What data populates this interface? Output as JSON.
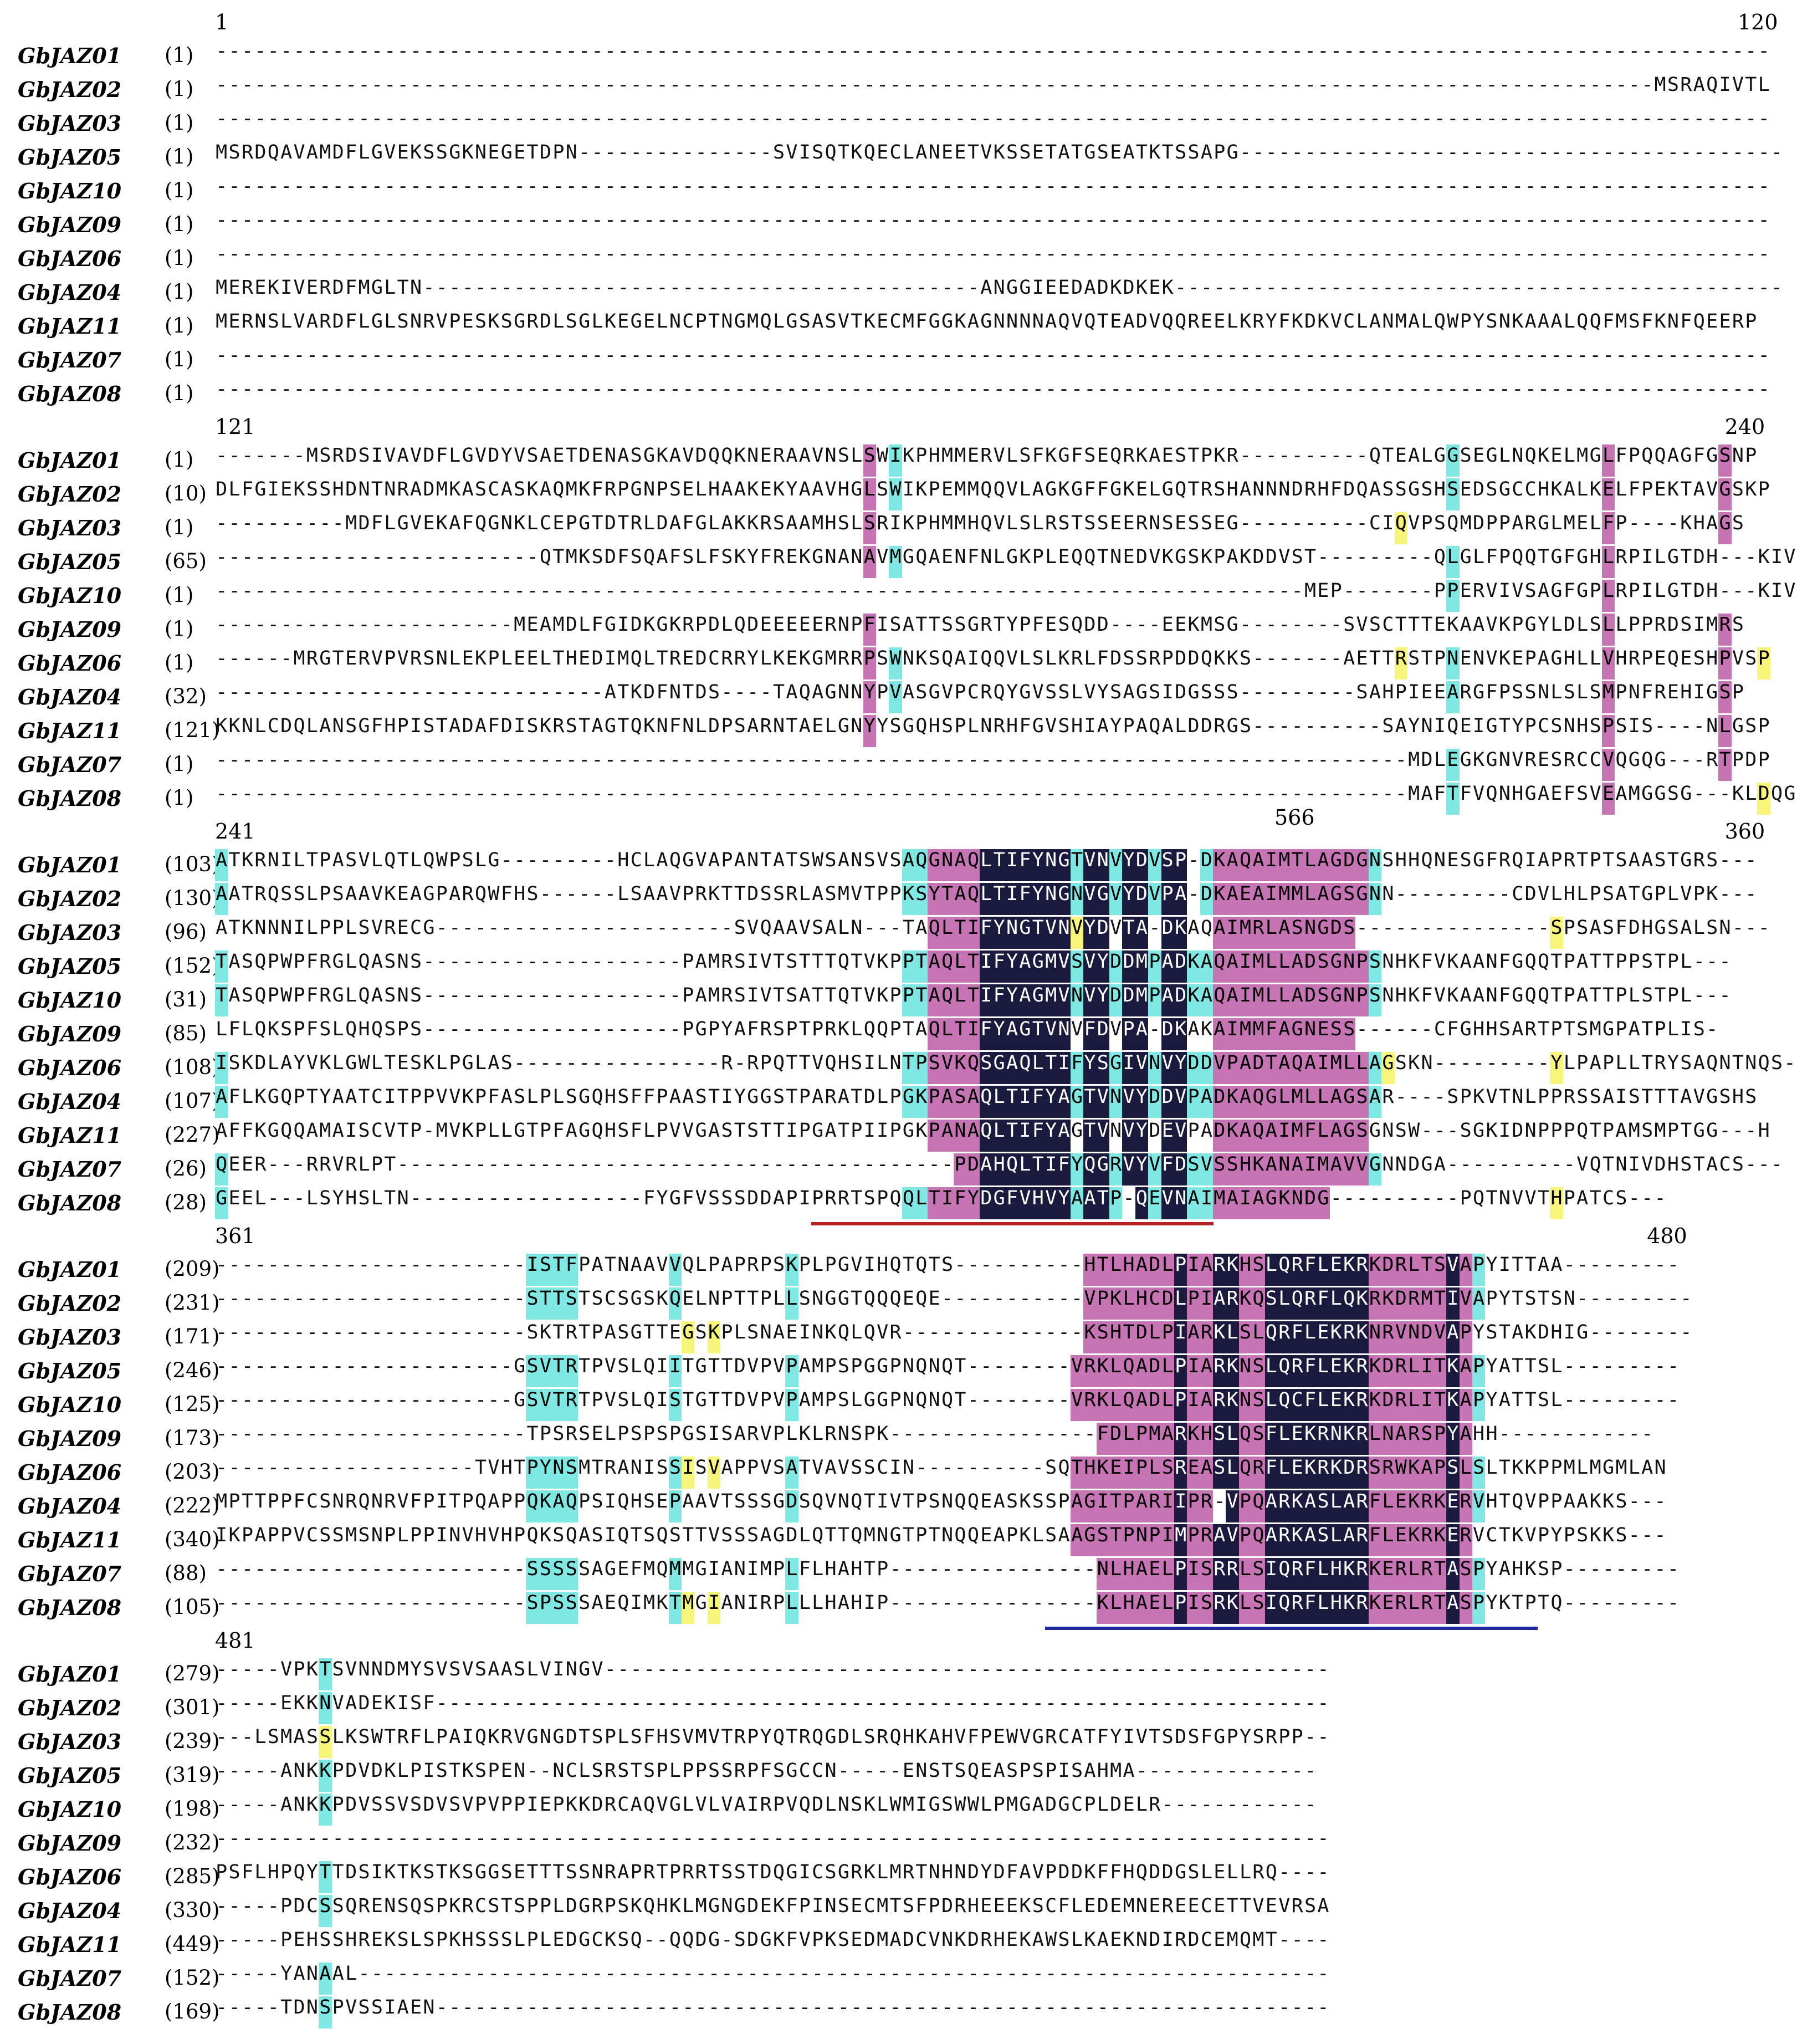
{
  "colors": {
    "identical": "#1a1a3e",
    "conserved": "#c774b4",
    "similar": "#7fe8e2",
    "weak": "#f7f57a",
    "tify_underline": "#b22222",
    "jas_underline": "#1e2a9a"
  },
  "blocks": [
    {
      "start": "1",
      "end": "120",
      "rows": [
        {
          "name": "GbJAZ01",
          "pos": "(1)",
          "seq": "------------------------------------------------------------------------------------------------------------------------"
        },
        {
          "name": "GbJAZ02",
          "pos": "(1)",
          "seq": "---------------------------------------------------------------------------------------------------------------MSRAQIVTL"
        },
        {
          "name": "GbJAZ03",
          "pos": "(1)",
          "seq": "------------------------------------------------------------------------------------------------------------------------"
        },
        {
          "name": "GbJAZ05",
          "pos": "(1)",
          "seq": "MSRDQAVAMDFLGVEKSSGKNEGETDPN---------------SVISQTKQECLANEETVKSSETATGSEATKTSSAPG------------------------------------------"
        },
        {
          "name": "GbJAZ10",
          "pos": "(1)",
          "seq": "------------------------------------------------------------------------------------------------------------------------"
        },
        {
          "name": "GbJAZ09",
          "pos": "(1)",
          "seq": "------------------------------------------------------------------------------------------------------------------------"
        },
        {
          "name": "GbJAZ06",
          "pos": "(1)",
          "seq": "------------------------------------------------------------------------------------------------------------------------"
        },
        {
          "name": "GbJAZ04",
          "pos": "(1)",
          "seq": "MEREKIVERDFMGLTN-------------------------------------------ANGGIEEDADKDKEK-----------------------------------------------"
        },
        {
          "name": "GbJAZ11",
          "pos": "(1)",
          "seq": "MERNSLVARDFLGLSNRVPESKSGRDLSGLKEGELNCPTNGMQLGSASVTKECMFGGKAGNNNNAQVQTEADVQQREELKRYFKDKVCLANMALQWPYSNKAAALQQFMSFKNFQEERP"
        },
        {
          "name": "GbJAZ07",
          "pos": "(1)",
          "seq": "------------------------------------------------------------------------------------------------------------------------"
        },
        {
          "name": "GbJAZ08",
          "pos": "(1)",
          "seq": "------------------------------------------------------------------------------------------------------------------------"
        }
      ]
    },
    {
      "start": "121",
      "end": "240",
      "rows": [
        {
          "name": "GbJAZ01",
          "pos": "(1)",
          "seq": "-------MSRDSIVAVDFLGVDYVSAETDENASGKAVDQQKNERAAVNSLSWIKPHMMERVLSFKGFSEQRKAESTPKR----------QTEALGGSEGLNQKELMGLFPQQAGFGSNP"
        },
        {
          "name": "GbJAZ02",
          "pos": "(10)",
          "seq": "DLFGIEKSSHDNTNRADMKASCASKAQMKFRPGNPSELHAAKEKYAAVHGLSWIKPEMMQQVLAGKGFFGKELGQTRSHANNNDRHFDQASSGSHSEDSGCCHKALKELFPEKTAVGSKP"
        },
        {
          "name": "GbJAZ03",
          "pos": "(1)",
          "seq": "----------MDFLGVEKAFQGNKLCEPGTDTRLDAFGLAKKRSAAMHSLSRIKPHMMHQVLSLRSTSSEERNSESSEG----------CIQVPSQMDPPARGLMELFP----KHAGS"
        },
        {
          "name": "GbJAZ05",
          "pos": "(65)",
          "seq": "-------------------------QTMKSDFSQAFSLFSKYFREKGNANAVMGQAENFNLGKPLEQQTNEDVKGSKPAKDDVST---------QLGLFPQQTGFGHLRPILGTDH---KIVAP"
        },
        {
          "name": "GbJAZ10",
          "pos": "(1)",
          "seq": "------------------------------------------------------------------------------------MEP-------PPERVIVSAGFGPLRPILGTDH---KIVAP"
        },
        {
          "name": "GbJAZ09",
          "pos": "(1)",
          "seq": "-----------------------MEAMDLFGIDKGKRPDLQDEEEEERNPFISATTSSGRTYPFESQDD----EEKMSG--------SVSCTTTEKAAVKPGYLDLSLLPPRDSIMRS"
        },
        {
          "name": "GbJAZ06",
          "pos": "(1)",
          "seq": "------MRGTERVPVRSNLEKPLEELTHEDIMQLTREDCRRYLKEKGMRRPSWNKSQAIQQVLSLKRLFDSSRPDDQKKS-------AETTRSTPNENVKEPAGHLLVHRPEQESHPVSP"
        },
        {
          "name": "GbJAZ04",
          "pos": "(32)",
          "seq": "------------------------------ATKDFNTDS----TAQAGNNYPVASGVPCRQYGVSSLVYSAGSIDGSSS---------SAHPIEEARGFPSSNLSLSMPNFREHIGSP"
        },
        {
          "name": "GbJAZ11",
          "pos": "(121)",
          "seq": "KKNLCDQLANSGFHPISTADAFDISKRSTAGTQKNFNLDPSARNTAELGNYYSGQHSPLNRHFGVSHIAYPAQALDDRGS----------SAYNIQEIGTYPCSNHSPSIS----NLGSP"
        },
        {
          "name": "GbJAZ07",
          "pos": "(1)",
          "seq": "--------------------------------------------------------------------------------------------MDLEGKGNVRESRCCVQGQG---RTPDP"
        },
        {
          "name": "GbJAZ08",
          "pos": "(1)",
          "seq": "--------------------------------------------------------------------------------------------MAFTFVQNHGAEFSVEAMGGSG---KLDQG"
        }
      ]
    },
    {
      "start": "241",
      "end": "360",
      "rows": [
        {
          "name": "GbJAZ01",
          "pos": "(103)",
          "seq": "ATKRNILTPASVLQTLQWPSLG---------HCLAQGVAPANTATSWSANSVSAQGNAQLTIFYNGTVNVYDVSP-DKAQAIMTLAGDGNSHHQNESGFRQIAPRTPTSAASTGRS---"
        },
        {
          "name": "GbJAZ02",
          "pos": "(130)",
          "seq": "AATRQSSLPSAAVKEAGPARQWFHS------LSAAVPRKTTDSSRLASMVTPPKSYTAQLTIFYNGNVGVYDVPA-DKAEAIMMLAGSGNN---------CDVLHLPSATGPLVPK---"
        },
        {
          "name": "GbJAZ03",
          "pos": "(96)",
          "seq": "ATKNNNILPPLSVRECG-----------------------SVQAAVSALN---TAQLTIFYNGTVNVYDVTA-DKAQAIMRLASNGDS---------------SPSASFDHGSALSN---"
        },
        {
          "name": "GbJAZ05",
          "pos": "(152)",
          "seq": "TASQPWPFRGLQASNS--------------------PAMRSIVTSTTTQTVKPPTAQLTIFYAGMVSVYDDMPADKAQAIMLLADSGNPSNHKFVKAANFGQQTPATTPPSTPL---"
        },
        {
          "name": "GbJAZ10",
          "pos": "(31)",
          "seq": "TASQPWPFRGLQASNS--------------------PAMRSIVTSATTQTVKPPTAQLTIFYAGMVNVYDDMPADKAQAIMLLADSGNPSNHKFVKAANFGQQTPATTPLSTPL---"
        },
        {
          "name": "GbJAZ09",
          "pos": "(85)",
          "seq": "LFLQKSPFSLQHQSPS--------------------PGPYAFRSPTPRKLQQPTAQLTIFYAGTVNVFDVPA-DKAKAIMMFAGNESS------CFGHHSARTPTSMGPATPLIS-"
        },
        {
          "name": "GbJAZ06",
          "pos": "(108)",
          "seq": "ISKDLAYVKLGWLTESKLPGLAS----------------R-RPQTTVQHSILNTPSVKQSGAQLTIFYSGIVNVYDDVPADTAQAIMLLAGSKN---------YLPAPLLTRYSAQNTNQS---"
        },
        {
          "name": "GbJAZ04",
          "pos": "(107)",
          "seq": "AFLKGQPTYAATCITPPVVKPFASLPLSGQHSFFPAASTIYGGSTPARATDLPGKPASAQLTIFYAGTVNVYDDVPADKAQGLMLLAGSAR----SPKVTNLPPRSSAISTTTAVGSHS"
        },
        {
          "name": "GbJAZ11",
          "pos": "(227)",
          "seq": "AFFKGQQAMAISCVTP-MVKPLLGTPFAGQHSFLPVVGASTSTTIPGATPIIPGKPANAQLTIFYAGTVNVYDEVPADKAQAIMFLAGSGNSW---SGKIDNPPPQTPAMSMPTGG---H"
        },
        {
          "name": "GbJAZ07",
          "pos": "(26)",
          "seq": "QEER---RRVRLPT-------------------------------------------PDAHQLTIFYQGRVYVFDSVSSHKANAIMAVVGNNDGA----------VQTNIVDHSTACS---"
        },
        {
          "name": "GbJAZ08",
          "pos": "(28)",
          "seq": "GEEL---LSYHSLTN------------------FYGFVSSSDDAPIPRRTSPQQLTIFYDGFVHVYAATP-QEVNAIMAIAGKNDG----------PQTNVVTHPATCS---"
        }
      ]
    },
    {
      "start": "361",
      "end": "480",
      "rows": [
        {
          "name": "GbJAZ01",
          "pos": "(209)",
          "seq": "------------------------ISTFPATNAAVVQLPAPRPSKPLPGVIHQTQTS----------HTLHADLPIARKHSLQRFLEKRKDRLTSVAPYITTAA---------"
        },
        {
          "name": "GbJAZ02",
          "pos": "(231)",
          "seq": "------------------------STTSTSCSGSKQELNPTTPLLSNGGTQQQEQE-----------VPKLHCDLPIARKQSLQRFLQKRKDRMTIVAPYTSTSN---------"
        },
        {
          "name": "GbJAZ03",
          "pos": "(171)",
          "seq": "------------------------SKTRTPASGTTEGSKPLSNAEINKQLQVR--------------KSHTDLPIARKLSLQRFLEKRKNRVNDVAPYSTAKDHIG--------"
        },
        {
          "name": "GbJAZ05",
          "pos": "(246)",
          "seq": "-----------------------GSVTRTPVSLQIITGTTDVPVPAMPSPGGPNQNQT--------VRKLQADLPIARKNSLQRFLEKRKDRLITKAPYATTSL---------"
        },
        {
          "name": "GbJAZ10",
          "pos": "(125)",
          "seq": "-----------------------GSVTRTPVSLQISTGTTDVPVPAMPSLGGPNQNQT--------VRKLQADLPIARKNSLQCFLEKRKDRLITKAPYATTSL---------"
        },
        {
          "name": "GbJAZ09",
          "pos": "(173)",
          "seq": "------------------------TPSRSELPSPSPGSISARVPLKLRNSPK----------------FDLPMARKHSLQSFLEKRNKRLNARSPYAHH------------"
        },
        {
          "name": "GbJAZ06",
          "pos": "(203)",
          "seq": "--------------------TVHTPYNSMTRANISSISVAPPVSATVAVSSCIN----------SQTHKEIPLSREASLQRFLEKRKDRSRWKAPSLSLTKKPPMLMGMLAN"
        },
        {
          "name": "GbJAZ04",
          "pos": "(222)",
          "seq": "MPTTPPFCSNRQNRVFPITPQAPPQKAQPSIQHSEPAAVTSSSGDSQVNQTIVTPSNQQEASKSSPAGITPARIIPR-VPQARKASLARFLEKRKERVHTQVPPAAKKS---"
        },
        {
          "name": "GbJAZ11",
          "pos": "(340)",
          "seq": "IKPAPPVCSSMSNPLPPINVHVHPQKSQASIQTSQSTTVSSSAGDLQTTQMNGTPTNQQEAPKLSAAGSTPNPIMPRAVPQARKASLARFLEKRKERVCTKVPYPSKKS---"
        },
        {
          "name": "GbJAZ07",
          "pos": "(88)",
          "seq": "------------------------SSSSSAGEFMQMMGIANIMPLFLHAHTP----------------NLHAELPISRRLSIQRFLHKRKERLRTASPYAHKSP---------"
        },
        {
          "name": "GbJAZ08",
          "pos": "(105)",
          "seq": "------------------------SPSSSAEQIMKTMGIANIRPLLLHAHIP----------------KLHAELPISRKLSIQRFLHKRKERLRTASPYKTPTQ---------"
        }
      ]
    },
    {
      "start": "481",
      "end": "566",
      "rows": [
        {
          "name": "GbJAZ01",
          "pos": "(279)",
          "seq": "-----VPKTSVNNDMYSVSVSAASLVINGV--------------------------------------------------------"
        },
        {
          "name": "GbJAZ02",
          "pos": "(301)",
          "seq": "-----EKKNVADEKISF---------------------------------------------------------------------"
        },
        {
          "name": "GbJAZ03",
          "pos": "(239)",
          "seq": "---LSMASSLKSWTRFLPAIQKRVGNGDTSPLSFHSVMVTRPYQTRQGDLSRQHKAHVFPEWVGRCATFYIVTSDSFGPYSRPP--"
        },
        {
          "name": "GbJAZ05",
          "pos": "(319)",
          "seq": "-----ANKKPDVDKLPISTKSPEN--NCLSRSTSPLPPSSRPFSGCCN-----ENSTSQEASPSPISAHMA--------------"
        },
        {
          "name": "GbJAZ10",
          "pos": "(198)",
          "seq": "-----ANKKPDVSSVSDVSVPVPPIEPKKDRCAQVGLVLVAIRPVQDLNSKLWMIGSWWLPMGADGCPLDELR------------"
        },
        {
          "name": "GbJAZ09",
          "pos": "(232)",
          "seq": "--------------------------------------------------------------------------------------"
        },
        {
          "name": "GbJAZ06",
          "pos": "(285)",
          "seq": "PSFLHPQYTTDSIKTKSTKSGGSETTTSSNRAPRTPRRTSSTDQGICSGRKLMRTNHNDYDFAVPDDKFFHQDDGSLELLRQ----"
        },
        {
          "name": "GbJAZ04",
          "pos": "(330)",
          "seq": "-----PDCSSQRENSQSPKRCSTSPPLDGRPSKQHKLMGNGDEKFPINSECMTSFPDRHEEEKSCFLEDEMNEREECETTVEVRSA"
        },
        {
          "name": "GbJAZ11",
          "pos": "(449)",
          "seq": "-----PEHSSHREKSLSPKHSSSLPLEDGCKSQ--QQDG-SDGKFVPKSEDMADCVNKDRHEKAWSLKAEKNDIRDCEMQMT----"
        },
        {
          "name": "GbJAZ07",
          "pos": "(152)",
          "seq": "-----YANAAL---------------------------------------------------------------------------"
        },
        {
          "name": "GbJAZ08",
          "pos": "(169)",
          "seq": "-----TDNSPVSSIAEN---------------------------------------------------------------------"
        }
      ]
    }
  ]
}
